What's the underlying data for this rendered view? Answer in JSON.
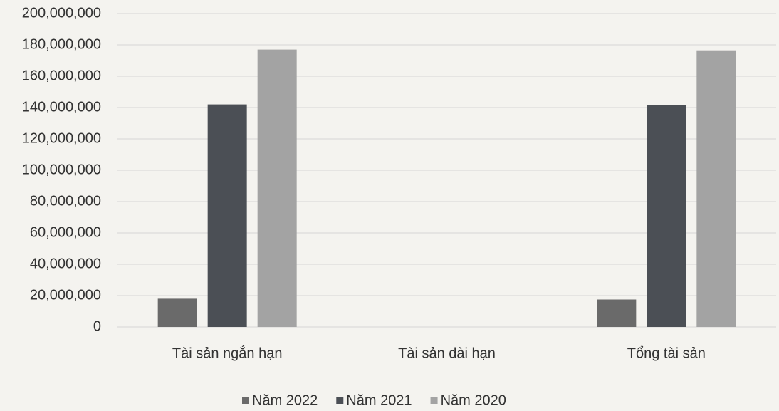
{
  "chart_data": {
    "type": "bar",
    "categories": [
      "Tài sản ngắn hạn",
      "Tài sản dài hạn",
      "Tổng tài sản"
    ],
    "series": [
      {
        "name": "Năm 2022",
        "color": "#6a6a6a",
        "values": [
          18000000,
          0,
          17500000
        ]
      },
      {
        "name": "Năm 2021",
        "color": "#4b4f55",
        "values": [
          142000000,
          0,
          141500000
        ]
      },
      {
        "name": "Năm 2020",
        "color": "#a3a3a3",
        "values": [
          177000000,
          0,
          176500000
        ]
      }
    ],
    "ylim": [
      0,
      200000000
    ],
    "yticks": [
      0,
      {
        "value": 20000000,
        "label": "20,000,000"
      },
      {
        "value": 40000000,
        "label": "40,000,000"
      },
      {
        "value": 60000000,
        "label": "60,000,000"
      },
      {
        "value": 80000000,
        "label": "80,000,000"
      },
      {
        "value": 100000000,
        "label": "100,000,000"
      },
      {
        "value": 120000000,
        "label": "120,000,000"
      },
      {
        "value": 140000000,
        "label": "140,000,000"
      },
      {
        "value": 160000000,
        "label": "160,000,000"
      },
      {
        "value": 180000000,
        "label": "180,000,000"
      },
      {
        "value": 200000000,
        "label": "200,000,000"
      }
    ],
    "grid": true,
    "legend": "bottom"
  }
}
